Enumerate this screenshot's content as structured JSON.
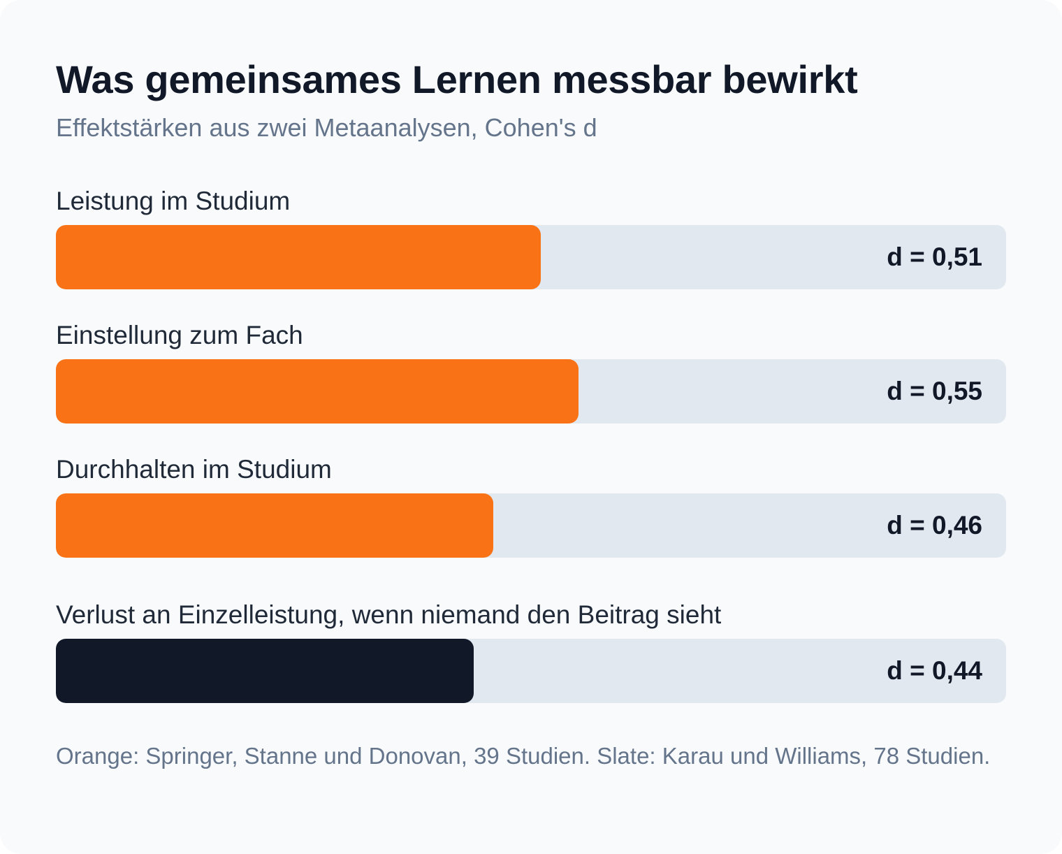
{
  "colors": {
    "orange": "#f97316",
    "slate": "#111827",
    "track": "#e2e8f0",
    "background": "#f8fafc"
  },
  "chart_data": {
    "type": "bar",
    "orientation": "horizontal",
    "title": "Was gemeinsames Lernen messbar bewirkt",
    "subtitle": "Effektstärken aus zwei Metaanalysen, Cohen's d",
    "categories": [
      "Leistung im Studium",
      "Einstellung zum Fach",
      "Durchhalten im Studium",
      "Verlust an Einzelleistung, wenn niemand den Beitrag sieht"
    ],
    "values": [
      0.51,
      0.55,
      0.46,
      0.44
    ],
    "value_labels": [
      "d = 0,51",
      "d = 0,55",
      "d = 0,46",
      "d = 0,44"
    ],
    "bar_colors": [
      "#f97316",
      "#f97316",
      "#f97316",
      "#111827"
    ],
    "xlim": [
      0,
      1
    ],
    "grid": false,
    "legend": "none",
    "footnote": "Orange: Springer, Stanne und Donovan, 39 Studien. Slate: Karau und Williams, 78 Studien."
  }
}
